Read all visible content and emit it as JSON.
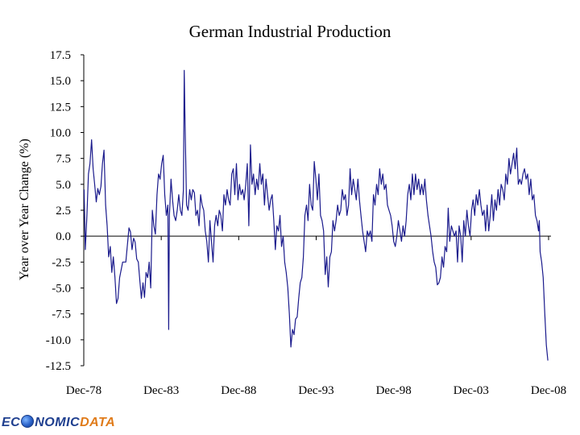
{
  "chart_data": {
    "type": "line",
    "title": "German Industrial Production",
    "xlabel": "",
    "ylabel": "Year over Year Change (%)",
    "ylim": [
      -12.5,
      17.5
    ],
    "yticks": [
      "17.5",
      "15.0",
      "12.5",
      "10.0",
      "7.5",
      "5.0",
      "2.5",
      "0.0",
      "-2.5",
      "-5.0",
      "-7.5",
      "-10.0",
      "-12.5"
    ],
    "xticks": [
      "Dec-78",
      "Dec-83",
      "Dec-88",
      "Dec-93",
      "Dec-98",
      "Dec-03",
      "Dec-08"
    ],
    "xlim": [
      1978.9,
      2008.9
    ],
    "series": [
      {
        "name": "German Industrial Production YoY",
        "color": "#1a1a8c",
        "points": [
          [
            1978.92,
            4.5
          ],
          [
            1979.0,
            -1.3
          ],
          [
            1979.1,
            2.0
          ],
          [
            1979.2,
            6.0
          ],
          [
            1979.3,
            7.0
          ],
          [
            1979.4,
            9.3
          ],
          [
            1979.5,
            6.5
          ],
          [
            1979.6,
            5.0
          ],
          [
            1979.7,
            3.3
          ],
          [
            1979.8,
            4.6
          ],
          [
            1979.9,
            4.0
          ],
          [
            1980.0,
            4.8
          ],
          [
            1980.1,
            7.0
          ],
          [
            1980.2,
            8.3
          ],
          [
            1980.3,
            3.0
          ],
          [
            1980.4,
            1.0
          ],
          [
            1980.5,
            -2.0
          ],
          [
            1980.6,
            -1.0
          ],
          [
            1980.7,
            -3.5
          ],
          [
            1980.8,
            -2.0
          ],
          [
            1980.9,
            -4.0
          ],
          [
            1981.0,
            -6.5
          ],
          [
            1981.1,
            -6.0
          ],
          [
            1981.2,
            -4.0
          ],
          [
            1981.4,
            -2.5
          ],
          [
            1981.6,
            -2.5
          ],
          [
            1981.8,
            0.8
          ],
          [
            1981.9,
            0.4
          ],
          [
            1982.0,
            -1.3
          ],
          [
            1982.1,
            -0.2
          ],
          [
            1982.2,
            -0.6
          ],
          [
            1982.3,
            -2.2
          ],
          [
            1982.4,
            -2.5
          ],
          [
            1982.5,
            -4.3
          ],
          [
            1982.6,
            -6.0
          ],
          [
            1982.7,
            -4.5
          ],
          [
            1982.8,
            -5.9
          ],
          [
            1982.9,
            -3.5
          ],
          [
            1983.0,
            -4.0
          ],
          [
            1983.1,
            -2.5
          ],
          [
            1983.2,
            -5.0
          ],
          [
            1983.3,
            2.5
          ],
          [
            1983.4,
            1.0
          ],
          [
            1983.5,
            0.2
          ],
          [
            1983.6,
            4.0
          ],
          [
            1983.7,
            6.0
          ],
          [
            1983.8,
            5.5
          ],
          [
            1983.9,
            7.0
          ],
          [
            1984.0,
            7.8
          ],
          [
            1984.1,
            4.0
          ],
          [
            1984.2,
            2.0
          ],
          [
            1984.3,
            3.0
          ],
          [
            1984.35,
            -9.0
          ],
          [
            1984.4,
            2.0
          ],
          [
            1984.5,
            5.5
          ],
          [
            1984.6,
            3.5
          ],
          [
            1984.7,
            2.0
          ],
          [
            1984.8,
            1.5
          ],
          [
            1984.9,
            2.5
          ],
          [
            1985.0,
            4.0
          ],
          [
            1985.1,
            2.5
          ],
          [
            1985.2,
            2.0
          ],
          [
            1985.3,
            4.5
          ],
          [
            1985.35,
            16.0
          ],
          [
            1985.4,
            11.0
          ],
          [
            1985.5,
            3.0
          ],
          [
            1985.6,
            2.5
          ],
          [
            1985.7,
            4.5
          ],
          [
            1985.8,
            3.5
          ],
          [
            1985.9,
            4.5
          ],
          [
            1986.0,
            4.2
          ],
          [
            1986.1,
            2.0
          ],
          [
            1986.2,
            2.5
          ],
          [
            1986.3,
            1.0
          ],
          [
            1986.4,
            4.0
          ],
          [
            1986.5,
            3.0
          ],
          [
            1986.6,
            2.5
          ],
          [
            1986.7,
            0.5
          ],
          [
            1986.8,
            -0.5
          ],
          [
            1986.9,
            -2.5
          ],
          [
            1987.0,
            1.5
          ],
          [
            1987.1,
            -0.5
          ],
          [
            1987.2,
            -2.5
          ],
          [
            1987.3,
            1.0
          ],
          [
            1987.4,
            2.0
          ],
          [
            1987.5,
            1.0
          ],
          [
            1987.6,
            2.5
          ],
          [
            1987.7,
            2.0
          ],
          [
            1987.8,
            0.5
          ],
          [
            1987.9,
            4.0
          ],
          [
            1988.0,
            3.0
          ],
          [
            1988.1,
            4.5
          ],
          [
            1988.2,
            3.5
          ],
          [
            1988.3,
            3.0
          ],
          [
            1988.4,
            6.0
          ],
          [
            1988.5,
            6.5
          ],
          [
            1988.6,
            4.0
          ],
          [
            1988.7,
            7.0
          ],
          [
            1988.8,
            3.5
          ],
          [
            1988.9,
            5.0
          ],
          [
            1989.0,
            4.0
          ],
          [
            1989.1,
            4.5
          ],
          [
            1989.2,
            3.5
          ],
          [
            1989.3,
            5.0
          ],
          [
            1989.4,
            7.0
          ],
          [
            1989.5,
            1.0
          ],
          [
            1989.6,
            8.8
          ],
          [
            1989.7,
            5.0
          ],
          [
            1989.8,
            6.0
          ],
          [
            1989.9,
            4.0
          ],
          [
            1990.0,
            5.5
          ],
          [
            1990.1,
            4.5
          ],
          [
            1990.2,
            7.0
          ],
          [
            1990.3,
            5.0
          ],
          [
            1990.4,
            6.0
          ],
          [
            1990.5,
            3.0
          ],
          [
            1990.6,
            5.5
          ],
          [
            1990.7,
            4.0
          ],
          [
            1990.8,
            2.5
          ],
          [
            1990.9,
            3.5
          ],
          [
            1991.0,
            4.0
          ],
          [
            1991.1,
            1.5
          ],
          [
            1991.2,
            -1.3
          ],
          [
            1991.3,
            1.0
          ],
          [
            1991.4,
            0.5
          ],
          [
            1991.5,
            2.0
          ],
          [
            1991.6,
            -1.0
          ],
          [
            1991.7,
            0.0
          ],
          [
            1991.8,
            -2.5
          ],
          [
            1991.9,
            -3.5
          ],
          [
            1992.0,
            -5.0
          ],
          [
            1992.1,
            -7.5
          ],
          [
            1992.2,
            -10.7
          ],
          [
            1992.3,
            -9.0
          ],
          [
            1992.4,
            -9.5
          ],
          [
            1992.5,
            -8.0
          ],
          [
            1992.6,
            -7.8
          ],
          [
            1992.7,
            -6.0
          ],
          [
            1992.8,
            -4.5
          ],
          [
            1992.9,
            -4.0
          ],
          [
            1993.0,
            -2.0
          ],
          [
            1993.1,
            2.0
          ],
          [
            1993.2,
            3.0
          ],
          [
            1993.3,
            1.5
          ],
          [
            1993.4,
            5.0
          ],
          [
            1993.5,
            3.0
          ],
          [
            1993.6,
            2.5
          ],
          [
            1993.7,
            7.2
          ],
          [
            1993.8,
            5.5
          ],
          [
            1993.9,
            3.5
          ],
          [
            1994.0,
            6.0
          ],
          [
            1994.1,
            2.0
          ],
          [
            1994.2,
            1.5
          ],
          [
            1994.3,
            0.5
          ],
          [
            1994.4,
            -3.7
          ],
          [
            1994.5,
            -2.0
          ],
          [
            1994.6,
            -4.9
          ],
          [
            1994.7,
            -2.0
          ],
          [
            1994.8,
            -1.5
          ],
          [
            1994.9,
            1.5
          ],
          [
            1995.0,
            0.5
          ],
          [
            1995.1,
            1.5
          ],
          [
            1995.2,
            3.0
          ],
          [
            1995.3,
            2.0
          ],
          [
            1995.4,
            2.5
          ],
          [
            1995.5,
            4.5
          ],
          [
            1995.6,
            3.5
          ],
          [
            1995.7,
            4.0
          ],
          [
            1995.8,
            2.0
          ],
          [
            1995.9,
            3.0
          ],
          [
            1996.0,
            6.5
          ],
          [
            1996.1,
            4.0
          ],
          [
            1996.2,
            5.5
          ],
          [
            1996.3,
            4.5
          ],
          [
            1996.4,
            3.5
          ],
          [
            1996.5,
            5.5
          ],
          [
            1996.6,
            3.5
          ],
          [
            1996.7,
            2.0
          ],
          [
            1996.8,
            0.5
          ],
          [
            1996.9,
            -0.5
          ],
          [
            1997.0,
            -1.5
          ],
          [
            1997.1,
            0.5
          ],
          [
            1997.2,
            0.0
          ],
          [
            1997.3,
            0.5
          ],
          [
            1997.4,
            -0.5
          ],
          [
            1997.5,
            4.0
          ],
          [
            1997.6,
            3.0
          ],
          [
            1997.7,
            5.0
          ],
          [
            1997.8,
            4.0
          ],
          [
            1997.9,
            6.5
          ],
          [
            1998.0,
            5.0
          ],
          [
            1998.1,
            6.0
          ],
          [
            1998.2,
            4.5
          ],
          [
            1998.3,
            5.0
          ],
          [
            1998.4,
            3.0
          ],
          [
            1998.5,
            2.5
          ],
          [
            1998.6,
            2.0
          ],
          [
            1998.7,
            1.0
          ],
          [
            1998.8,
            -0.5
          ],
          [
            1998.9,
            -1.0
          ],
          [
            1999.0,
            0.0
          ],
          [
            1999.1,
            1.5
          ],
          [
            1999.2,
            0.5
          ],
          [
            1999.3,
            -0.5
          ],
          [
            1999.4,
            1.0
          ],
          [
            1999.5,
            0.0
          ],
          [
            1999.6,
            1.5
          ],
          [
            1999.7,
            4.0
          ],
          [
            1999.8,
            5.0
          ],
          [
            1999.9,
            3.5
          ],
          [
            2000.0,
            6.0
          ],
          [
            2000.1,
            4.0
          ],
          [
            2000.2,
            6.0
          ],
          [
            2000.3,
            4.5
          ],
          [
            2000.4,
            5.5
          ],
          [
            2000.5,
            4.0
          ],
          [
            2000.6,
            5.0
          ],
          [
            2000.7,
            4.0
          ],
          [
            2000.8,
            5.5
          ],
          [
            2000.9,
            3.5
          ],
          [
            2001.0,
            2.0
          ],
          [
            2001.1,
            1.0
          ],
          [
            2001.2,
            0.0
          ],
          [
            2001.3,
            -1.5
          ],
          [
            2001.4,
            -2.5
          ],
          [
            2001.5,
            -3.0
          ],
          [
            2001.6,
            -4.7
          ],
          [
            2001.7,
            -4.5
          ],
          [
            2001.8,
            -4.0
          ],
          [
            2001.9,
            -2.0
          ],
          [
            2002.0,
            -3.0
          ],
          [
            2002.1,
            -1.0
          ],
          [
            2002.2,
            -1.5
          ],
          [
            2002.3,
            2.7
          ],
          [
            2002.4,
            -0.5
          ],
          [
            2002.5,
            1.0
          ],
          [
            2002.6,
            0.5
          ],
          [
            2002.7,
            0.0
          ],
          [
            2002.8,
            0.5
          ],
          [
            2002.9,
            -2.5
          ],
          [
            2003.0,
            1.0
          ],
          [
            2003.1,
            0.0
          ],
          [
            2003.2,
            -2.5
          ],
          [
            2003.3,
            1.5
          ],
          [
            2003.4,
            0.0
          ],
          [
            2003.5,
            2.5
          ],
          [
            2003.6,
            1.0
          ],
          [
            2003.7,
            0.0
          ],
          [
            2003.8,
            2.5
          ],
          [
            2003.9,
            3.5
          ],
          [
            2004.0,
            2.0
          ],
          [
            2004.1,
            4.0
          ],
          [
            2004.2,
            3.0
          ],
          [
            2004.3,
            4.5
          ],
          [
            2004.4,
            3.0
          ],
          [
            2004.5,
            2.0
          ],
          [
            2004.6,
            2.5
          ],
          [
            2004.7,
            0.5
          ],
          [
            2004.8,
            3.0
          ],
          [
            2004.9,
            0.5
          ],
          [
            2005.0,
            2.0
          ],
          [
            2005.1,
            4.0
          ],
          [
            2005.2,
            1.5
          ],
          [
            2005.3,
            3.5
          ],
          [
            2005.4,
            2.5
          ],
          [
            2005.5,
            4.5
          ],
          [
            2005.6,
            3.0
          ],
          [
            2005.7,
            5.0
          ],
          [
            2005.8,
            4.5
          ],
          [
            2005.9,
            3.5
          ],
          [
            2006.0,
            6.0
          ],
          [
            2006.1,
            5.0
          ],
          [
            2006.2,
            7.5
          ],
          [
            2006.3,
            6.0
          ],
          [
            2006.4,
            7.0
          ],
          [
            2006.5,
            8.0
          ],
          [
            2006.6,
            6.5
          ],
          [
            2006.7,
            8.5
          ],
          [
            2006.8,
            5.0
          ],
          [
            2006.9,
            5.5
          ],
          [
            2007.0,
            5.0
          ],
          [
            2007.1,
            6.0
          ],
          [
            2007.2,
            6.5
          ],
          [
            2007.3,
            5.5
          ],
          [
            2007.4,
            6.0
          ],
          [
            2007.5,
            4.0
          ],
          [
            2007.6,
            5.5
          ],
          [
            2007.7,
            3.5
          ],
          [
            2007.8,
            4.0
          ],
          [
            2007.9,
            2.0
          ],
          [
            2008.0,
            1.5
          ],
          [
            2008.1,
            0.5
          ],
          [
            2008.15,
            1.5
          ],
          [
            2008.2,
            -1.5
          ],
          [
            2008.3,
            -2.5
          ],
          [
            2008.4,
            -4.0
          ],
          [
            2008.5,
            -7.5
          ],
          [
            2008.6,
            -10.5
          ],
          [
            2008.7,
            -12.0
          ]
        ]
      }
    ]
  },
  "watermark": {
    "part1": "EC",
    "part2": "NOMIC",
    "part3": "DATA"
  }
}
